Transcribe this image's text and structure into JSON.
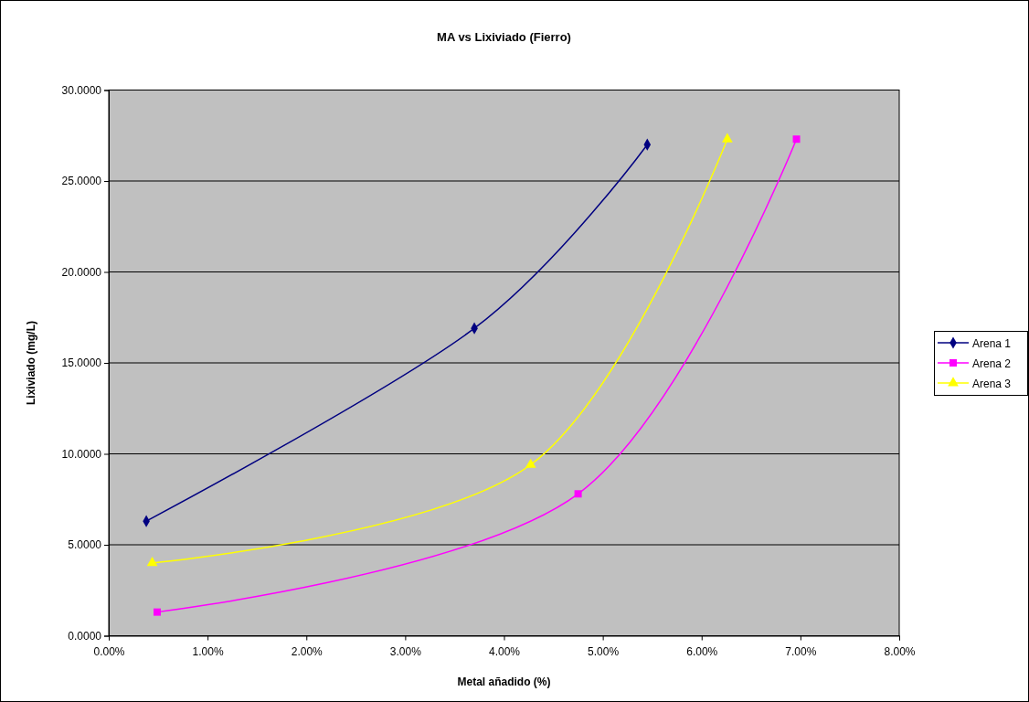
{
  "chart_data": {
    "type": "line",
    "title": "MA vs Lixiviado (Fierro)",
    "xlabel": "Metal añadido (%)",
    "ylabel": "Lixiviado (mg/L)",
    "xlim": [
      0,
      8
    ],
    "xticks": [
      {
        "value": 0,
        "label": "0.00%"
      },
      {
        "value": 1,
        "label": "1.00%"
      },
      {
        "value": 2,
        "label": "2.00%"
      },
      {
        "value": 3,
        "label": "3.00%"
      },
      {
        "value": 4,
        "label": "4.00%"
      },
      {
        "value": 5,
        "label": "5.00%"
      },
      {
        "value": 6,
        "label": "6.00%"
      },
      {
        "value": 7,
        "label": "7.00%"
      },
      {
        "value": 8,
        "label": "8.00%"
      }
    ],
    "ylim": [
      0,
      30
    ],
    "yticks": [
      {
        "value": 0,
        "label": "0.0000"
      },
      {
        "value": 5,
        "label": "5.0000"
      },
      {
        "value": 10,
        "label": "10.0000"
      },
      {
        "value": 15,
        "label": "15.0000"
      },
      {
        "value": 20,
        "label": "20.0000"
      },
      {
        "value": 25,
        "label": "25.0000"
      },
      {
        "value": 30,
        "label": "30.0000"
      }
    ],
    "grid": "y",
    "legend": "right",
    "line_style": "solid",
    "series": [
      {
        "name": "Arena 1",
        "color": "#000080",
        "marker": "diamond",
        "x": [
          0.38,
          3.7,
          5.45
        ],
        "values": [
          6.3,
          16.9,
          27.0
        ]
      },
      {
        "name": "Arena 2",
        "color": "#ff00ff",
        "marker": "square",
        "x": [
          0.49,
          4.75,
          6.96
        ],
        "values": [
          1.3,
          7.8,
          27.3
        ]
      },
      {
        "name": "Arena 3",
        "color": "#ffff00",
        "marker": "triangle",
        "x": [
          0.44,
          4.27,
          6.26
        ],
        "values": [
          4.0,
          9.4,
          27.3
        ]
      }
    ]
  }
}
